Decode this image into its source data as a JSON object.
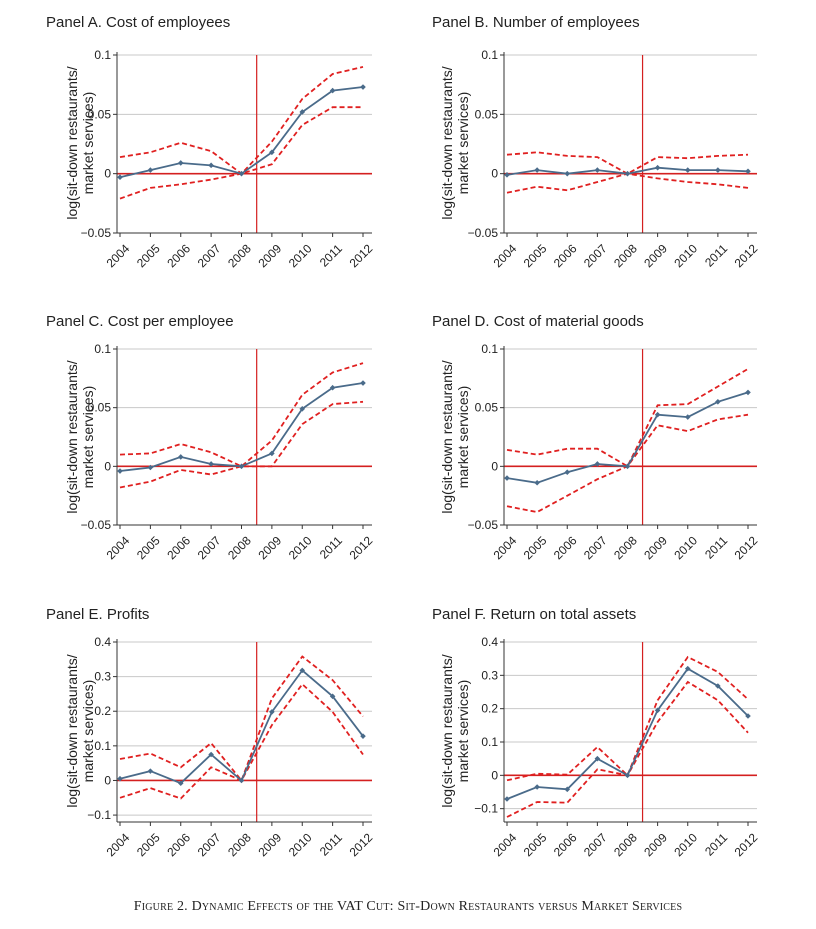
{
  "figure": {
    "caption": "Figure 2. Dynamic Effects of the VAT Cut: Sit-Down Restaurants versus Market Services"
  },
  "colors": {
    "estimate_line": "#4a6b8a",
    "confidence_band": "#e02020",
    "reference_lines": "#d42020",
    "grid": "#c8c8c8"
  },
  "chart_data": [
    {
      "id": "A",
      "type": "line",
      "title": "Panel A. Cost of employees",
      "ylabel_line1": "log(sit-down restaurants/",
      "ylabel_line2": "market services)",
      "x": [
        2004,
        2005,
        2006,
        2007,
        2008,
        2009,
        2010,
        2011,
        2012
      ],
      "x_tick_labels": [
        "2004",
        "2005",
        "2006",
        "2007",
        "2008",
        "2009",
        "2010",
        "2011",
        "2012"
      ],
      "ylim": [
        -0.05,
        0.1
      ],
      "yticks": [
        -0.05,
        0,
        0.05,
        0.1
      ],
      "y_tick_labels": [
        "−0.05",
        "0",
        "0.05",
        "0.1"
      ],
      "vline_x": 2008.5,
      "series": [
        {
          "values": [
            -0.003,
            0.003,
            0.009,
            0.007,
            0.0,
            0.018,
            0.052,
            0.07,
            0.073
          ]
        },
        {
          "values": [
            0.014,
            0.018,
            0.026,
            0.019,
            0.0,
            0.027,
            0.063,
            0.084,
            0.09
          ]
        },
        {
          "values": [
            -0.021,
            -0.012,
            -0.009,
            -0.005,
            0.0,
            0.008,
            0.041,
            0.056,
            0.056
          ]
        }
      ]
    },
    {
      "id": "B",
      "type": "line",
      "title": "Panel B. Number of employees",
      "ylabel_line1": "log(sit-down restaurants/",
      "ylabel_line2": "market services)",
      "x": [
        2004,
        2005,
        2006,
        2007,
        2008,
        2009,
        2010,
        2011,
        2012
      ],
      "x_tick_labels": [
        "2004",
        "2005",
        "2006",
        "2007",
        "2008",
        "2009",
        "2010",
        "2011",
        "2012"
      ],
      "ylim": [
        -0.05,
        0.1
      ],
      "yticks": [
        -0.05,
        0,
        0.05,
        0.1
      ],
      "y_tick_labels": [
        "−0.05",
        "0",
        "0.05",
        "0.1"
      ],
      "vline_x": 2008.5,
      "series": [
        {
          "values": [
            -0.001,
            0.003,
            0.0,
            0.003,
            0.0,
            0.005,
            0.003,
            0.003,
            0.002
          ]
        },
        {
          "values": [
            0.016,
            0.018,
            0.015,
            0.014,
            0.0,
            0.014,
            0.013,
            0.015,
            0.016
          ]
        },
        {
          "values": [
            -0.016,
            -0.011,
            -0.014,
            -0.007,
            0.0,
            -0.004,
            -0.007,
            -0.009,
            -0.012
          ]
        }
      ]
    },
    {
      "id": "C",
      "type": "line",
      "title": "Panel C. Cost per employee",
      "ylabel_line1": "log(sit-down restaurants/",
      "ylabel_line2": "market services)",
      "x": [
        2004,
        2005,
        2006,
        2007,
        2008,
        2009,
        2010,
        2011,
        2012
      ],
      "x_tick_labels": [
        "2004",
        "2005",
        "2006",
        "2007",
        "2008",
        "2009",
        "2010",
        "2011",
        "2012"
      ],
      "ylim": [
        -0.05,
        0.1
      ],
      "yticks": [
        -0.05,
        0,
        0.05,
        0.1
      ],
      "y_tick_labels": [
        "−0.05",
        "0",
        "0.05",
        "0.1"
      ],
      "vline_x": 2008.5,
      "series": [
        {
          "values": [
            -0.004,
            -0.001,
            0.008,
            0.002,
            0.0,
            0.011,
            0.049,
            0.067,
            0.071
          ]
        },
        {
          "values": [
            0.01,
            0.011,
            0.019,
            0.012,
            0.0,
            0.022,
            0.061,
            0.08,
            0.088
          ]
        },
        {
          "values": [
            -0.018,
            -0.013,
            -0.003,
            -0.007,
            0.0,
            0.0,
            0.036,
            0.053,
            0.055
          ]
        }
      ]
    },
    {
      "id": "D",
      "type": "line",
      "title": "Panel D. Cost of material goods",
      "ylabel_line1": "log(sit-down restaurants/",
      "ylabel_line2": "market services)",
      "x": [
        2004,
        2005,
        2006,
        2007,
        2008,
        2009,
        2010,
        2011,
        2012
      ],
      "x_tick_labels": [
        "2004",
        "2005",
        "2006",
        "2007",
        "2008",
        "2009",
        "2010",
        "2011",
        "2012"
      ],
      "ylim": [
        -0.05,
        0.1
      ],
      "yticks": [
        -0.05,
        0,
        0.05,
        0.1
      ],
      "y_tick_labels": [
        "−0.05",
        "0",
        "0.05",
        "0.1"
      ],
      "vline_x": 2008.5,
      "series": [
        {
          "values": [
            -0.01,
            -0.014,
            -0.005,
            0.002,
            0.0,
            0.044,
            0.042,
            0.055,
            0.063
          ]
        },
        {
          "values": [
            0.014,
            0.01,
            0.015,
            0.015,
            0.0,
            0.052,
            0.053,
            0.068,
            0.083
          ]
        },
        {
          "values": [
            -0.034,
            -0.039,
            -0.025,
            -0.011,
            0.0,
            0.035,
            0.03,
            0.04,
            0.044
          ]
        }
      ]
    },
    {
      "id": "E",
      "type": "line",
      "title": "Panel E. Profits",
      "ylabel_line1": "log(sit-down restaurants/",
      "ylabel_line2": "market services)",
      "x": [
        2004,
        2005,
        2006,
        2007,
        2008,
        2009,
        2010,
        2011,
        2012
      ],
      "x_tick_labels": [
        "2004",
        "2005",
        "2006",
        "2007",
        "2008",
        "2009",
        "2010",
        "2011",
        "2012"
      ],
      "ylim": [
        -0.12,
        0.4
      ],
      "yticks": [
        -0.1,
        0,
        0.1,
        0.2,
        0.3,
        0.4
      ],
      "y_tick_labels": [
        "−0.1",
        "0",
        "0.1",
        "0.2",
        "0.3",
        "0.4"
      ],
      "vline_x": 2008.5,
      "series": [
        {
          "values": [
            0.005,
            0.027,
            -0.008,
            0.075,
            0.0,
            0.198,
            0.318,
            0.243,
            0.128
          ]
        },
        {
          "values": [
            0.062,
            0.078,
            0.038,
            0.108,
            0.0,
            0.237,
            0.358,
            0.29,
            0.185
          ]
        },
        {
          "values": [
            -0.05,
            -0.022,
            -0.052,
            0.038,
            0.0,
            0.16,
            0.278,
            0.198,
            0.075
          ]
        }
      ]
    },
    {
      "id": "F",
      "type": "line",
      "title": "Panel F. Return on total assets",
      "ylabel_line1": "log(sit-down restaurants/",
      "ylabel_line2": "market services)",
      "x": [
        2004,
        2005,
        2006,
        2007,
        2008,
        2009,
        2010,
        2011,
        2012
      ],
      "x_tick_labels": [
        "2004",
        "2005",
        "2006",
        "2007",
        "2008",
        "2009",
        "2010",
        "2011",
        "2012"
      ],
      "ylim": [
        -0.14,
        0.4
      ],
      "yticks": [
        -0.1,
        0,
        0.1,
        0.2,
        0.3,
        0.4
      ],
      "y_tick_labels": [
        "−0.1",
        "0",
        "0.1",
        "0.2",
        "0.3",
        "0.4"
      ],
      "vline_x": 2008.5,
      "series": [
        {
          "values": [
            -0.071,
            -0.035,
            -0.042,
            0.05,
            0.0,
            0.195,
            0.32,
            0.268,
            0.178
          ]
        },
        {
          "values": [
            -0.015,
            0.005,
            0.002,
            0.085,
            0.0,
            0.225,
            0.355,
            0.31,
            0.228
          ]
        },
        {
          "values": [
            -0.125,
            -0.08,
            -0.082,
            0.018,
            0.0,
            0.16,
            0.28,
            0.225,
            0.128
          ]
        }
      ]
    }
  ]
}
